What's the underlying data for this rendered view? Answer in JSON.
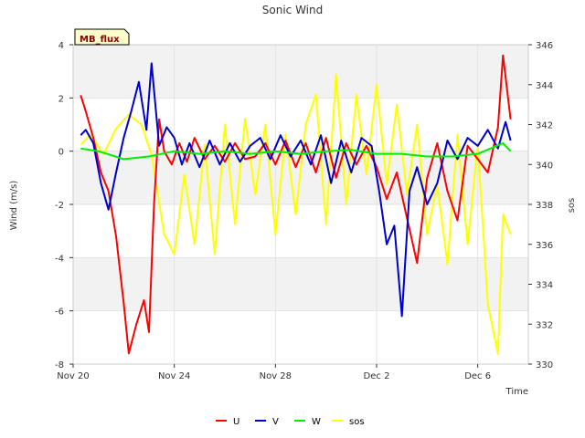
{
  "chart_data": {
    "type": "line",
    "title": "Sonic Wind",
    "badge": "MB_flux",
    "xlabel": "Time",
    "ylabel": "Wind (m/s)",
    "y2label": "sos",
    "x_ticks": [
      "Nov 20",
      "Nov 24",
      "Nov 28",
      "Dec 2",
      "Dec 6"
    ],
    "x_tick_days": [
      0,
      4,
      8,
      12,
      16
    ],
    "xlim_days": [
      0,
      18
    ],
    "ylim": [
      -8,
      4
    ],
    "y_ticks": [
      "4",
      "2",
      "0",
      "-2",
      "-4",
      "-6",
      "-8"
    ],
    "y2lim": [
      330,
      346
    ],
    "y2_ticks": [
      "346",
      "344",
      "342",
      "340",
      "338",
      "336",
      "334",
      "332",
      "330"
    ],
    "grid": true,
    "legend_position": "bottom-center",
    "series": [
      {
        "name": "U",
        "color": "#ff0000",
        "axis": "left",
        "x": [
          0.3,
          0.5,
          0.8,
          1.1,
          1.4,
          1.7,
          2.0,
          2.2,
          2.5,
          2.8,
          3.0,
          3.2,
          3.4,
          3.6,
          3.9,
          4.2,
          4.5,
          4.8,
          5.2,
          5.6,
          6.0,
          6.4,
          6.8,
          7.2,
          7.6,
          8.0,
          8.4,
          8.8,
          9.2,
          9.6,
          10.0,
          10.4,
          10.8,
          11.2,
          11.6,
          12.0,
          12.4,
          12.8,
          13.2,
          13.6,
          14.0,
          14.4,
          14.8,
          15.2,
          15.6,
          16.0,
          16.4,
          16.8,
          17.0,
          17.3
        ],
        "y": [
          2.1,
          1.5,
          0.5,
          -0.8,
          -1.5,
          -3.2,
          -5.7,
          -7.6,
          -6.5,
          -5.6,
          -6.8,
          -2.0,
          1.2,
          0.0,
          -0.5,
          0.3,
          -0.4,
          0.5,
          -0.3,
          0.2,
          -0.4,
          0.3,
          -0.3,
          -0.2,
          0.3,
          -0.5,
          0.4,
          -0.6,
          0.3,
          -0.8,
          0.5,
          -1.0,
          0.3,
          -0.5,
          0.2,
          -0.6,
          -1.8,
          -0.8,
          -2.5,
          -4.2,
          -1.0,
          0.3,
          -1.5,
          -2.6,
          0.2,
          -0.3,
          -0.8,
          0.9,
          3.6,
          1.2
        ]
      },
      {
        "name": "V",
        "color": "#0000cc",
        "axis": "left",
        "x": [
          0.3,
          0.5,
          0.8,
          1.1,
          1.4,
          1.7,
          2.0,
          2.3,
          2.6,
          2.9,
          3.1,
          3.4,
          3.7,
          4.0,
          4.3,
          4.6,
          5.0,
          5.4,
          5.8,
          6.2,
          6.6,
          7.0,
          7.4,
          7.8,
          8.2,
          8.6,
          9.0,
          9.4,
          9.8,
          10.2,
          10.6,
          11.0,
          11.4,
          11.8,
          12.1,
          12.4,
          12.7,
          13.0,
          13.3,
          13.6,
          14.0,
          14.4,
          14.8,
          15.2,
          15.6,
          16.0,
          16.4,
          16.8,
          17.1,
          17.3
        ],
        "y": [
          0.6,
          0.8,
          0.3,
          -1.2,
          -2.2,
          -0.8,
          0.5,
          1.5,
          2.6,
          0.8,
          3.3,
          0.2,
          0.9,
          0.5,
          -0.5,
          0.3,
          -0.6,
          0.4,
          -0.5,
          0.3,
          -0.4,
          0.2,
          0.5,
          -0.3,
          0.6,
          -0.2,
          0.4,
          -0.5,
          0.6,
          -1.2,
          0.4,
          -0.8,
          0.5,
          0.2,
          -1.5,
          -3.5,
          -2.8,
          -6.2,
          -1.5,
          -0.6,
          -2.0,
          -1.2,
          0.4,
          -0.3,
          0.5,
          0.2,
          0.8,
          0.1,
          1.1,
          0.4
        ]
      },
      {
        "name": "W",
        "color": "#00ee00",
        "axis": "left",
        "x": [
          0.3,
          1.0,
          2.0,
          3.0,
          4.0,
          5.0,
          6.0,
          7.0,
          8.0,
          9.0,
          10.0,
          11.0,
          12.0,
          13.0,
          14.0,
          15.0,
          16.0,
          16.5,
          17.0,
          17.3
        ],
        "y": [
          0.1,
          0.0,
          -0.3,
          -0.2,
          0.0,
          -0.1,
          0.0,
          -0.1,
          0.0,
          -0.1,
          0.0,
          0.05,
          -0.1,
          -0.1,
          -0.2,
          -0.2,
          -0.1,
          0.1,
          0.3,
          0.0
        ]
      },
      {
        "name": "sos",
        "color": "#ffff00",
        "axis": "right",
        "x": [
          0.3,
          0.7,
          1.2,
          1.7,
          2.2,
          2.7,
          3.1,
          3.6,
          4.0,
          4.4,
          4.8,
          5.2,
          5.6,
          6.0,
          6.4,
          6.8,
          7.2,
          7.6,
          8.0,
          8.4,
          8.8,
          9.2,
          9.6,
          10.0,
          10.4,
          10.8,
          11.2,
          11.6,
          12.0,
          12.4,
          12.8,
          13.2,
          13.6,
          14.0,
          14.4,
          14.8,
          15.2,
          15.6,
          16.0,
          16.4,
          16.8,
          17.0,
          17.3
        ],
        "y": [
          341.0,
          341.5,
          340.5,
          341.8,
          342.5,
          342.0,
          340.5,
          336.5,
          335.5,
          339.5,
          336.0,
          341.0,
          335.5,
          342.0,
          337.0,
          342.3,
          338.5,
          342.0,
          336.5,
          341.5,
          337.5,
          342.0,
          343.5,
          337.0,
          344.5,
          338.0,
          343.5,
          339.5,
          344.0,
          339.0,
          343.0,
          338.5,
          342.0,
          336.5,
          339.0,
          335.0,
          341.5,
          336.0,
          341.0,
          333.0,
          330.5,
          337.5,
          336.5
        ]
      }
    ]
  }
}
